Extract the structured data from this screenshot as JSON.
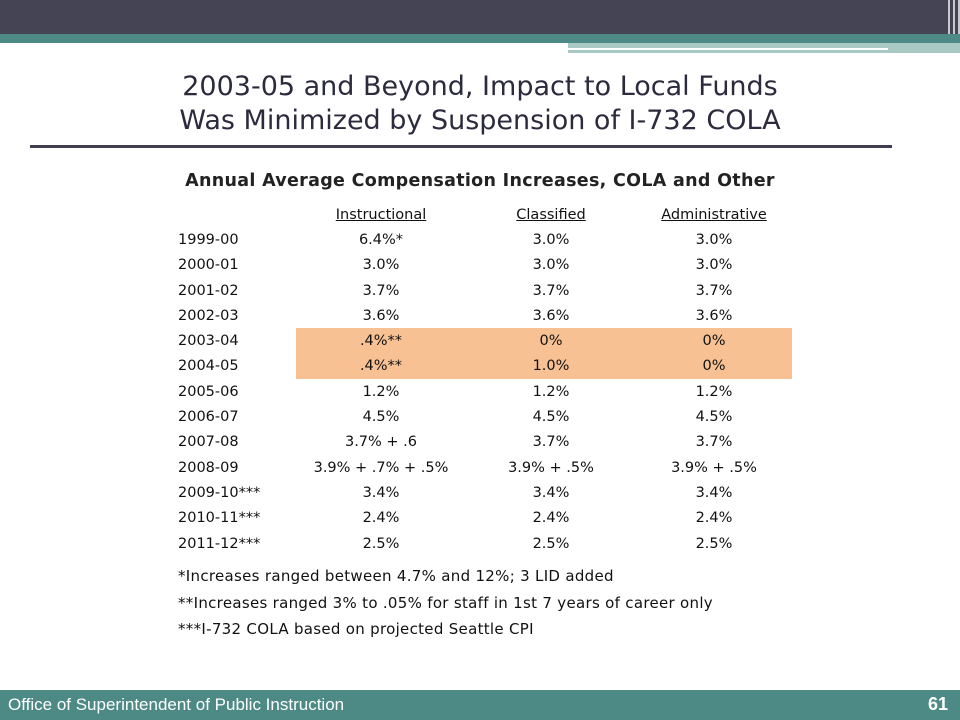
{
  "slide": {
    "title_line1": "2003-05 and Beyond, Impact to Local Funds",
    "title_line2": "Was Minimized by Suspension of I-732 COLA",
    "table_title": "Annual Average Compensation Increases, COLA and Other",
    "columns": [
      "Instructional",
      "Classified",
      "Administrative"
    ],
    "rows": [
      {
        "year": "1999-00",
        "instructional": "6.4%*",
        "classified": "3.0%",
        "administrative": "3.0%",
        "highlight": false
      },
      {
        "year": "2000-01",
        "instructional": "3.0%",
        "classified": "3.0%",
        "administrative": "3.0%",
        "highlight": false
      },
      {
        "year": "2001-02",
        "instructional": "3.7%",
        "classified": "3.7%",
        "administrative": "3.7%",
        "highlight": false
      },
      {
        "year": "2002-03",
        "instructional": "3.6%",
        "classified": "3.6%",
        "administrative": "3.6%",
        "highlight": false
      },
      {
        "year": "2003-04",
        "instructional": ".4%**",
        "classified": "0%",
        "administrative": "0%",
        "highlight": true
      },
      {
        "year": "2004-05",
        "instructional": ".4%**",
        "classified": "1.0%",
        "administrative": "0%",
        "highlight": true
      },
      {
        "year": "2005-06",
        "instructional": "1.2%",
        "classified": "1.2%",
        "administrative": "1.2%",
        "highlight": false
      },
      {
        "year": "2006-07",
        "instructional": "4.5%",
        "classified": "4.5%",
        "administrative": "4.5%",
        "highlight": false
      },
      {
        "year": "2007-08",
        "instructional": "3.7% + .6",
        "classified": "3.7%",
        "administrative": "3.7%",
        "highlight": false
      },
      {
        "year": "2008-09",
        "instructional": "3.9% + .7% + .5%",
        "classified": "3.9% + .5%",
        "administrative": "3.9% + .5%",
        "highlight": false
      },
      {
        "year": "2009-10***",
        "instructional": "3.4%",
        "classified": "3.4%",
        "administrative": "3.4%",
        "highlight": false
      },
      {
        "year": "2010-11***",
        "instructional": "2.4%",
        "classified": "2.4%",
        "administrative": "2.4%",
        "highlight": false
      },
      {
        "year": "2011-12***",
        "instructional": "2.5%",
        "classified": "2.5%",
        "administrative": "2.5%",
        "highlight": false
      }
    ],
    "notes": [
      "*Increases ranged between 4.7% and 12%; 3 LID added",
      "**Increases ranged 3% to .05% for staff in 1st 7 years of career only",
      "***I-732 COLA based on projected Seattle CPI"
    ]
  },
  "footer": {
    "org": "Office of Superintendent of Public Instruction",
    "page_number": "61"
  },
  "colors": {
    "header_band": "#444455",
    "accent_teal": "#4d8a86",
    "highlight": "#f8c193"
  }
}
